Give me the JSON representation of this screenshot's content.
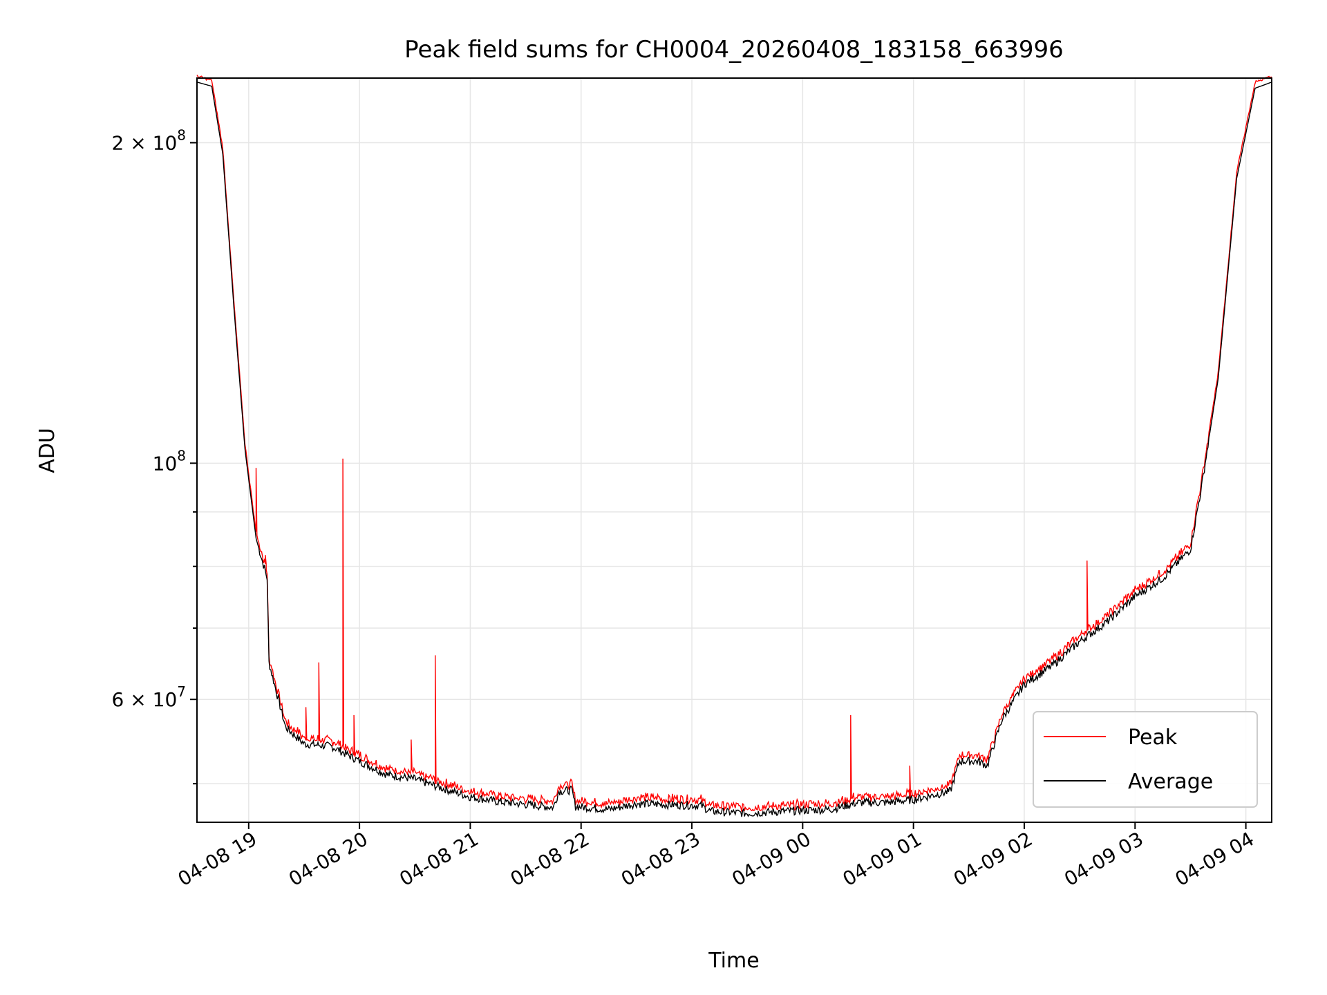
{
  "chart_data": {
    "type": "line",
    "title": "Peak field sums for CH0004_20260408_183158_663996",
    "xlabel": "Time",
    "ylabel": "ADU",
    "y_scale": "log",
    "grid": true,
    "legend_position": "lower-right",
    "xlim": [
      "2026-04-08 18:32",
      "2026-04-09 04:14"
    ],
    "ylim": [
      46000000,
      230000000
    ],
    "x_ticks": [
      {
        "value": "2026-04-08 19:00",
        "label": "04-08 19"
      },
      {
        "value": "2026-04-08 20:00",
        "label": "04-08 20"
      },
      {
        "value": "2026-04-08 21:00",
        "label": "04-08 21"
      },
      {
        "value": "2026-04-08 22:00",
        "label": "04-08 22"
      },
      {
        "value": "2026-04-08 23:00",
        "label": "04-08 23"
      },
      {
        "value": "2026-04-09 00:00",
        "label": "04-09 00"
      },
      {
        "value": "2026-04-09 01:00",
        "label": "04-09 01"
      },
      {
        "value": "2026-04-09 02:00",
        "label": "04-09 02"
      },
      {
        "value": "2026-04-09 03:00",
        "label": "04-09 03"
      },
      {
        "value": "2026-04-09 04:00",
        "label": "04-09 04"
      }
    ],
    "y_major_ticks": [
      {
        "value": 60000000,
        "label_base": "6 × 10",
        "label_exp": "7"
      },
      {
        "value": 100000000,
        "label_base": "10",
        "label_exp": "8"
      },
      {
        "value": 200000000,
        "label_base": "2 × 10",
        "label_exp": "8"
      }
    ],
    "y_minor_ticks": [
      50000000,
      70000000,
      80000000,
      90000000
    ],
    "series": [
      {
        "name": "Average",
        "color": "#000000",
        "points": [
          [
            "2026-04-08 18:32",
            228000000
          ],
          [
            "2026-04-08 18:40",
            226000000
          ],
          [
            "2026-04-08 18:46",
            195000000
          ],
          [
            "2026-04-08 18:52",
            140000000
          ],
          [
            "2026-04-08 18:58",
            103000000
          ],
          [
            "2026-04-08 19:04",
            85000000
          ],
          [
            "2026-04-08 19:10",
            78000000
          ],
          [
            "2026-04-08 19:11",
            65000000
          ],
          [
            "2026-04-08 19:15",
            61000000
          ],
          [
            "2026-04-08 19:20",
            56500000
          ],
          [
            "2026-04-08 19:30",
            54500000
          ],
          [
            "2026-04-08 19:45",
            54200000
          ],
          [
            "2026-04-08 20:00",
            52500000
          ],
          [
            "2026-04-08 20:15",
            51000000
          ],
          [
            "2026-04-08 20:30",
            50500000
          ],
          [
            "2026-04-08 20:45",
            49500000
          ],
          [
            "2026-04-08 21:00",
            48600000
          ],
          [
            "2026-04-08 21:15",
            48100000
          ],
          [
            "2026-04-08 21:30",
            47800000
          ],
          [
            "2026-04-08 21:45",
            47500000
          ],
          [
            "2026-04-08 21:48",
            49200000
          ],
          [
            "2026-04-08 21:55",
            49300000
          ],
          [
            "2026-04-08 21:57",
            47600000
          ],
          [
            "2026-04-08 22:15",
            47300000
          ],
          [
            "2026-04-08 22:30",
            47900000
          ],
          [
            "2026-04-08 22:45",
            47800000
          ],
          [
            "2026-04-08 23:05",
            47700000
          ],
          [
            "2026-04-08 23:10",
            47100000
          ],
          [
            "2026-04-08 23:30",
            46900000
          ],
          [
            "2026-04-08 23:50",
            47100000
          ],
          [
            "2026-04-09 00:00",
            47200000
          ],
          [
            "2026-04-09 00:15",
            47300000
          ],
          [
            "2026-04-09 00:30",
            48000000
          ],
          [
            "2026-04-09 00:45",
            48000000
          ],
          [
            "2026-04-09 01:00",
            48300000
          ],
          [
            "2026-04-09 01:20",
            49200000
          ],
          [
            "2026-04-09 01:25",
            52500000
          ],
          [
            "2026-04-09 01:35",
            52500000
          ],
          [
            "2026-04-09 01:40",
            52000000
          ],
          [
            "2026-04-09 01:48",
            57500000
          ],
          [
            "2026-04-09 02:00",
            62000000
          ],
          [
            "2026-04-09 02:15",
            64500000
          ],
          [
            "2026-04-09 02:30",
            68000000
          ],
          [
            "2026-04-09 02:45",
            71000000
          ],
          [
            "2026-04-09 03:00",
            75000000
          ],
          [
            "2026-04-09 03:15",
            78000000
          ],
          [
            "2026-04-09 03:30",
            83000000
          ],
          [
            "2026-04-09 03:36",
            95000000
          ],
          [
            "2026-04-09 03:45",
            120000000
          ],
          [
            "2026-04-09 03:55",
            185000000
          ],
          [
            "2026-04-09 04:05",
            225000000
          ],
          [
            "2026-04-09 04:14",
            228000000
          ]
        ]
      },
      {
        "name": "Peak",
        "color": "#ff0000",
        "offset_ratio": 1.01,
        "spikes": [
          [
            "2026-04-08 19:04",
            99000000
          ],
          [
            "2026-04-08 19:09",
            82000000
          ],
          [
            "2026-04-08 19:31",
            59000000
          ],
          [
            "2026-04-08 19:38",
            65000000
          ],
          [
            "2026-04-08 19:51",
            101000000
          ],
          [
            "2026-04-08 19:57",
            58000000
          ],
          [
            "2026-04-08 20:28",
            55000000
          ],
          [
            "2026-04-08 20:41",
            66000000
          ],
          [
            "2026-04-09 00:26",
            58000000
          ],
          [
            "2026-04-09 00:58",
            52000000
          ],
          [
            "2026-04-09 02:34",
            81000000
          ]
        ]
      }
    ]
  }
}
